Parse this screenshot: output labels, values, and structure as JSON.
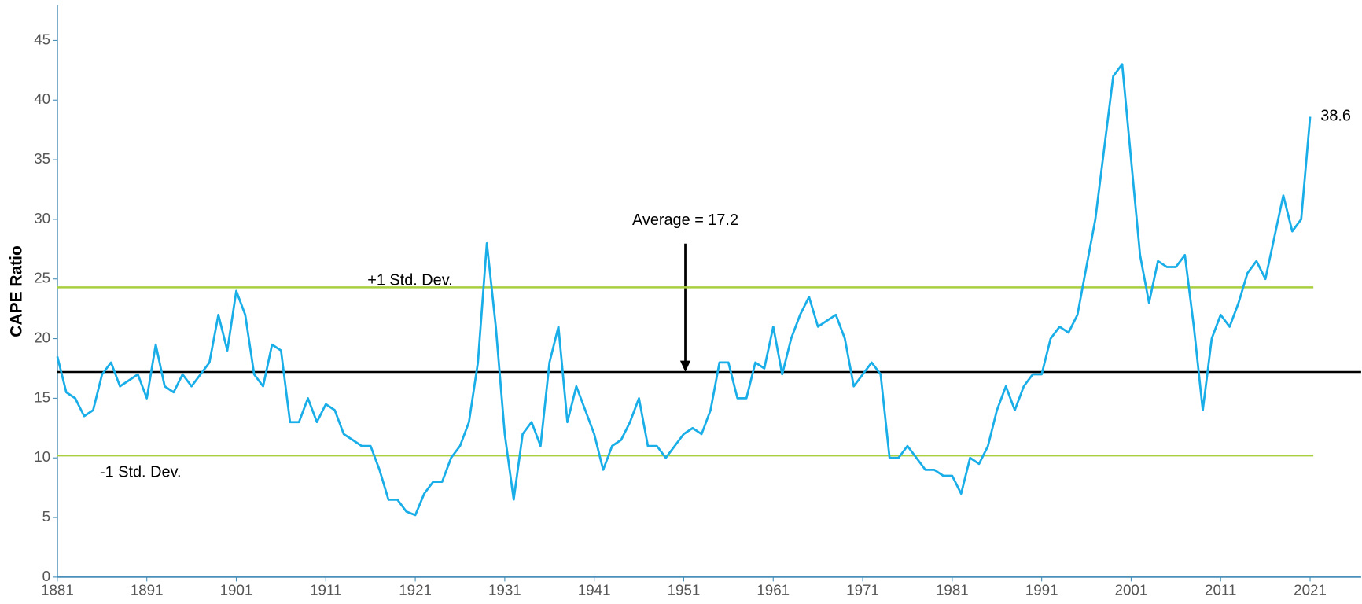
{
  "chart_data": {
    "type": "line",
    "y_label": "CAPE Ratio",
    "x": [
      1881,
      1882,
      1883,
      1884,
      1885,
      1886,
      1887,
      1888,
      1889,
      1890,
      1891,
      1892,
      1893,
      1894,
      1895,
      1896,
      1897,
      1898,
      1899,
      1900,
      1901,
      1902,
      1903,
      1904,
      1905,
      1906,
      1907,
      1908,
      1909,
      1910,
      1911,
      1912,
      1913,
      1914,
      1915,
      1916,
      1917,
      1918,
      1919,
      1920,
      1921,
      1922,
      1923,
      1924,
      1925,
      1926,
      1927,
      1928,
      1929,
      1930,
      1931,
      1932,
      1933,
      1934,
      1935,
      1936,
      1937,
      1938,
      1939,
      1940,
      1941,
      1942,
      1943,
      1944,
      1945,
      1946,
      1947,
      1948,
      1949,
      1950,
      1951,
      1952,
      1953,
      1954,
      1955,
      1956,
      1957,
      1958,
      1959,
      1960,
      1961,
      1962,
      1963,
      1964,
      1965,
      1966,
      1967,
      1968,
      1969,
      1970,
      1971,
      1972,
      1973,
      1974,
      1975,
      1976,
      1977,
      1978,
      1979,
      1980,
      1981,
      1982,
      1983,
      1984,
      1985,
      1986,
      1987,
      1988,
      1989,
      1990,
      1991,
      1992,
      1993,
      1994,
      1995,
      1996,
      1997,
      1998,
      1999,
      2000,
      2001,
      2002,
      2003,
      2004,
      2005,
      2006,
      2007,
      2008,
      2009,
      2010,
      2011,
      2012,
      2013,
      2014,
      2015,
      2016,
      2017,
      2018,
      2019,
      2020,
      2021
    ],
    "series": [
      {
        "name": "CAPE Ratio",
        "color": "#1aaee8",
        "values": [
          18.5,
          15.5,
          15,
          13.5,
          14,
          17,
          18,
          16,
          16.5,
          17,
          15,
          19.5,
          16,
          15.5,
          17,
          16,
          17,
          18,
          22,
          19,
          24,
          22,
          17,
          16,
          19.5,
          19,
          13,
          13,
          15,
          13,
          14.5,
          14,
          12,
          11.5,
          11,
          11,
          9,
          6.5,
          6.5,
          5.5,
          5.2,
          7,
          8,
          8,
          10,
          11,
          13,
          18,
          28,
          21,
          12,
          6.5,
          12,
          13,
          11,
          18,
          21,
          13,
          16,
          14,
          12,
          9,
          11,
          11.5,
          13,
          15,
          11,
          11,
          10,
          11,
          12,
          12.5,
          12,
          14,
          18,
          18,
          15,
          15,
          18,
          17.5,
          21,
          17,
          20,
          22,
          23.5,
          21,
          21.5,
          22,
          20,
          16,
          17,
          18,
          17,
          10,
          10,
          11,
          10,
          9,
          9,
          8.5,
          8.5,
          7,
          10,
          9.5,
          11,
          14,
          16,
          14,
          16,
          17,
          17,
          20,
          21,
          20.5,
          22,
          26,
          30,
          36,
          42,
          43,
          35,
          27,
          23,
          26.5,
          26,
          26,
          27,
          21,
          14,
          20,
          22,
          21,
          23,
          25.5,
          26.5,
          25,
          28.5,
          32,
          29,
          30,
          38.6
        ]
      }
    ],
    "last_label": "38.6",
    "reference_lines": [
      {
        "label": "Average = 17.2",
        "value": 17.2,
        "color": "#000000"
      },
      {
        "label": "+1 Std. Dev.",
        "value": 24.3,
        "color": "#a9cf3f"
      },
      {
        "label": "-1 Std. Dev.",
        "value": 10.2,
        "color": "#a9cf3f"
      }
    ],
    "xlim": [
      1881,
      2026.7
    ],
    "xticks": [
      1881,
      1891,
      1901,
      1911,
      1921,
      1931,
      1941,
      1951,
      1961,
      1971,
      1981,
      1991,
      2001,
      2011,
      2021
    ],
    "ylim": [
      0,
      48
    ],
    "yticks": [
      0,
      5,
      10,
      15,
      20,
      25,
      30,
      35,
      40,
      45
    ],
    "grid": false
  }
}
